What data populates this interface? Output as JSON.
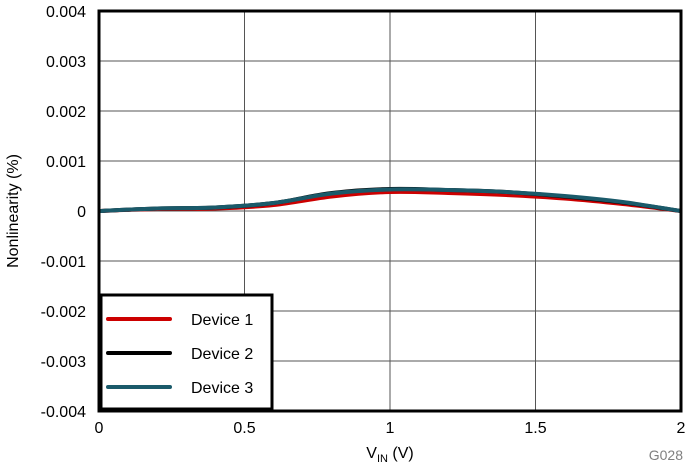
{
  "chart_data": {
    "type": "line",
    "title": "",
    "xlabel": "V_IN (V)",
    "xlabel_main": "V",
    "xlabel_sub": "IN",
    "xlabel_unit": " (V)",
    "ylabel": "Nonlinearity (%)",
    "xlim": [
      0,
      2
    ],
    "ylim": [
      -0.004,
      0.004
    ],
    "x_ticks": [
      "0",
      "0.5",
      "1",
      "1.5",
      "2"
    ],
    "y_ticks": [
      "0.004",
      "0.003",
      "0.002",
      "0.001",
      "0",
      "-0.001",
      "-0.002",
      "-0.003",
      "-0.004"
    ],
    "grid": true,
    "legend_position": "lower left",
    "annotation": "G028",
    "x": [
      0,
      0.2,
      0.4,
      0.6,
      0.8,
      1.0,
      1.2,
      1.4,
      1.6,
      1.8,
      2.0
    ],
    "series": [
      {
        "name": "Device 1",
        "color": "#cc0000",
        "values": [
          0,
          4e-05,
          5e-05,
          0.00012,
          0.00029,
          0.00038,
          0.00036,
          0.00032,
          0.00025,
          0.00014,
          0
        ]
      },
      {
        "name": "Device 2",
        "color": "#000000",
        "values": [
          0,
          5e-05,
          7e-05,
          0.00016,
          0.00036,
          0.00044,
          0.00042,
          0.00038,
          0.00029,
          0.00017,
          0
        ]
      },
      {
        "name": "Device 3",
        "color": "#1a5a6a",
        "values": [
          0,
          5e-05,
          7e-05,
          0.00016,
          0.00035,
          0.00043,
          0.00042,
          0.00038,
          0.0003,
          0.00018,
          0
        ]
      }
    ]
  }
}
